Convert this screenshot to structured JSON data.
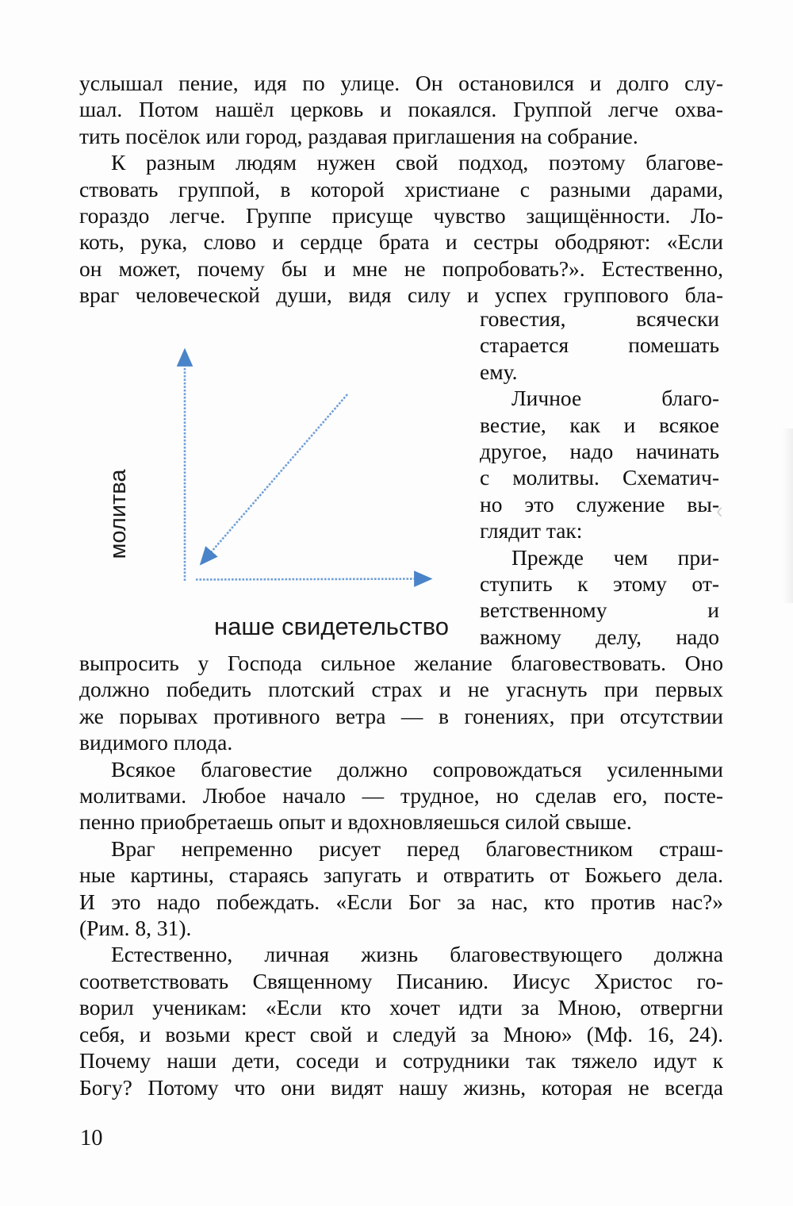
{
  "page": {
    "number": "10"
  },
  "body_text": {
    "top_block": {
      "lines": [
        {
          "text": "услышал пение, идя по улице. Он остановился и долго слу-",
          "justify": true,
          "indent": false
        },
        {
          "text": "шал. Потом нашёл церковь и покаялся. Группой легче охва-",
          "justify": true,
          "indent": false
        },
        {
          "text": "тить посёлок или город, раздавая приглашения на собрание.",
          "justify": false,
          "indent": false
        },
        {
          "text": "К разным людям нужен свой подход, поэтому благове-",
          "justify": true,
          "indent": true
        },
        {
          "text": "ствовать группой, в которой христиане с разными дарами,",
          "justify": true,
          "indent": false
        },
        {
          "text": "гораздо легче. Группе присуще чувство защищённости. Ло-",
          "justify": true,
          "indent": false
        },
        {
          "text": "коть, рука, слово и сердце брата и сестры ободряют: «Если",
          "justify": true,
          "indent": false
        },
        {
          "text": "он может, почему бы и мне не попробовать?». Естественно,",
          "justify": true,
          "indent": false
        },
        {
          "text": "враг человеческой души, видя силу и успех группового бла-",
          "justify": true,
          "indent": false
        }
      ]
    },
    "right_column": {
      "lines": [
        {
          "text": "говестия, всячески",
          "justify": true,
          "indent": false
        },
        {
          "text": "старается помешать",
          "justify": true,
          "indent": false
        },
        {
          "text": "ему.",
          "justify": false,
          "indent": false
        },
        {
          "text": "Личное благо-",
          "justify": true,
          "indent": true
        },
        {
          "text": "вестие, как и всякое",
          "justify": true,
          "indent": false
        },
        {
          "text": "другое, надо начинать",
          "justify": true,
          "indent": false
        },
        {
          "text": "с молитвы. Схематич-",
          "justify": true,
          "indent": false
        },
        {
          "text": "но это служение вы-",
          "justify": true,
          "indent": false
        },
        {
          "text": "глядит так:",
          "justify": false,
          "indent": false
        },
        {
          "text": "Прежде чем при-",
          "justify": true,
          "indent": true
        },
        {
          "text": "ступить к этому от-",
          "justify": true,
          "indent": false
        },
        {
          "text": "ветственному и",
          "justify": true,
          "indent": false
        },
        {
          "text": "важному делу, надо",
          "justify": true,
          "indent": false
        }
      ]
    },
    "bottom_block": {
      "lines": [
        {
          "text": "выпросить у Господа сильное желание благовествовать. Оно",
          "justify": true,
          "indent": false
        },
        {
          "text": "должно победить плотский страх и не угаснуть при первых",
          "justify": true,
          "indent": false
        },
        {
          "text": "же порывах противного ветра — в гонениях, при отсутствии",
          "justify": true,
          "indent": false
        },
        {
          "text": "видимого плода.",
          "justify": false,
          "indent": false
        },
        {
          "text": "Всякое благовестие должно сопровождаться усиленными",
          "justify": true,
          "indent": true
        },
        {
          "text": "молитвами. Любое начало — трудное, но сделав его, посте-",
          "justify": true,
          "indent": false
        },
        {
          "text": "пенно приобретаешь опыт и вдохновляешься силой свыше.",
          "justify": false,
          "indent": false
        },
        {
          "text": "Враг непременно рисует перед благовестником страш-",
          "justify": true,
          "indent": true
        },
        {
          "text": "ные картины, стараясь запугать и отвратить от Божьего дела.",
          "justify": true,
          "indent": false
        },
        {
          "text": "И это надо побеждать. «Если Бог за нас, кто против нас?»",
          "justify": true,
          "indent": false
        },
        {
          "text": "(Рим. 8, 31).",
          "justify": false,
          "indent": false
        },
        {
          "text": "Естественно, личная жизнь благовествующего должна",
          "justify": true,
          "indent": true
        },
        {
          "text": "соответствовать Священному Писанию. Иисус Христос го-",
          "justify": true,
          "indent": false
        },
        {
          "text": "ворил ученикам: «Если кто хочет идти за Мною, отвергни",
          "justify": true,
          "indent": false
        },
        {
          "text": "себя, и возьми крест свой и следуй за Мною» (Мф. 16, 24).",
          "justify": true,
          "indent": false
        },
        {
          "text": "Почему наши дети, соседи и сотрудники так тяжело идут к",
          "justify": true,
          "indent": false
        },
        {
          "text": "Богу? Потому что они видят нашу жизнь, которая не всегда",
          "justify": true,
          "indent": false
        }
      ]
    }
  },
  "figure": {
    "y_axis_label": "молитва",
    "x_axis_label": "наше свидетельство",
    "line_color": "#6f9fd8",
    "arrowhead_color": "#4a84c8"
  },
  "artifacts": {
    "edge_mark": "‹"
  }
}
